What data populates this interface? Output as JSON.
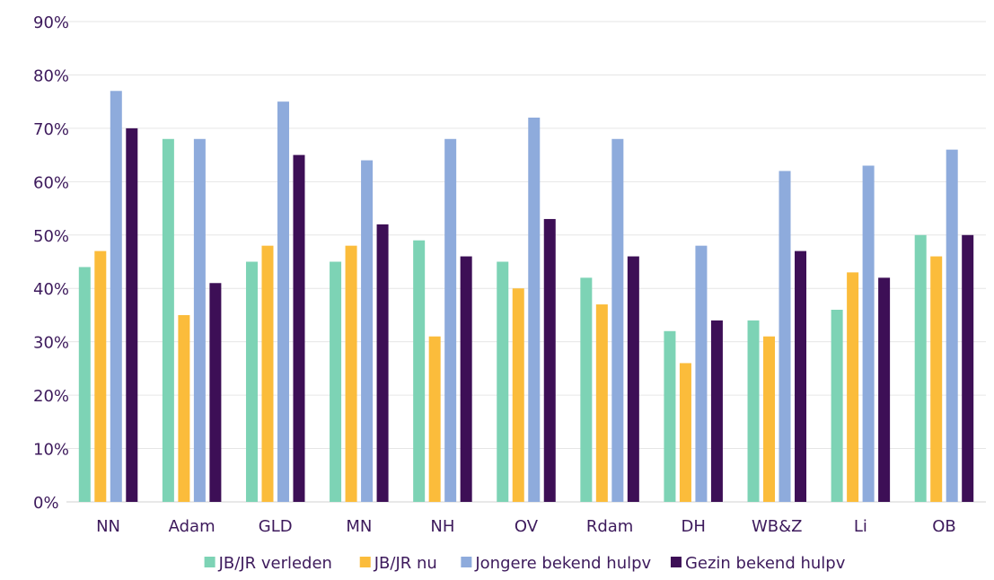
{
  "chart_data": {
    "type": "bar",
    "categories": [
      "NN",
      "Adam",
      "GLD",
      "MN",
      "NH",
      "OV",
      "Rdam",
      "DH",
      "WB&Z",
      "Li",
      "OB"
    ],
    "series": [
      {
        "name": "JB/JR verleden",
        "color": "#7dd3b5",
        "values": [
          44,
          68,
          45,
          45,
          49,
          45,
          42,
          32,
          34,
          36,
          50
        ]
      },
      {
        "name": "JB/JR nu",
        "color": "#fbbc3b",
        "values": [
          47,
          35,
          48,
          48,
          31,
          40,
          37,
          26,
          31,
          43,
          46
        ]
      },
      {
        "name": "Jongere bekend hulpv",
        "color": "#8eabdc",
        "values": [
          77,
          68,
          75,
          64,
          68,
          72,
          68,
          48,
          62,
          63,
          66
        ]
      },
      {
        "name": "Gezin bekend hulpv",
        "color": "#3d0f56",
        "values": [
          70,
          41,
          65,
          52,
          46,
          53,
          46,
          34,
          47,
          42,
          50
        ]
      }
    ],
    "y_ticks": [
      "0%",
      "10%",
      "20%",
      "30%",
      "40%",
      "50%",
      "60%",
      "70%",
      "80%",
      "90%"
    ],
    "ylim": [
      0,
      90
    ],
    "grid": true,
    "legend_position": "bottom",
    "text_color": "#3d1a5c",
    "grid_color": "#e6e6e6"
  }
}
